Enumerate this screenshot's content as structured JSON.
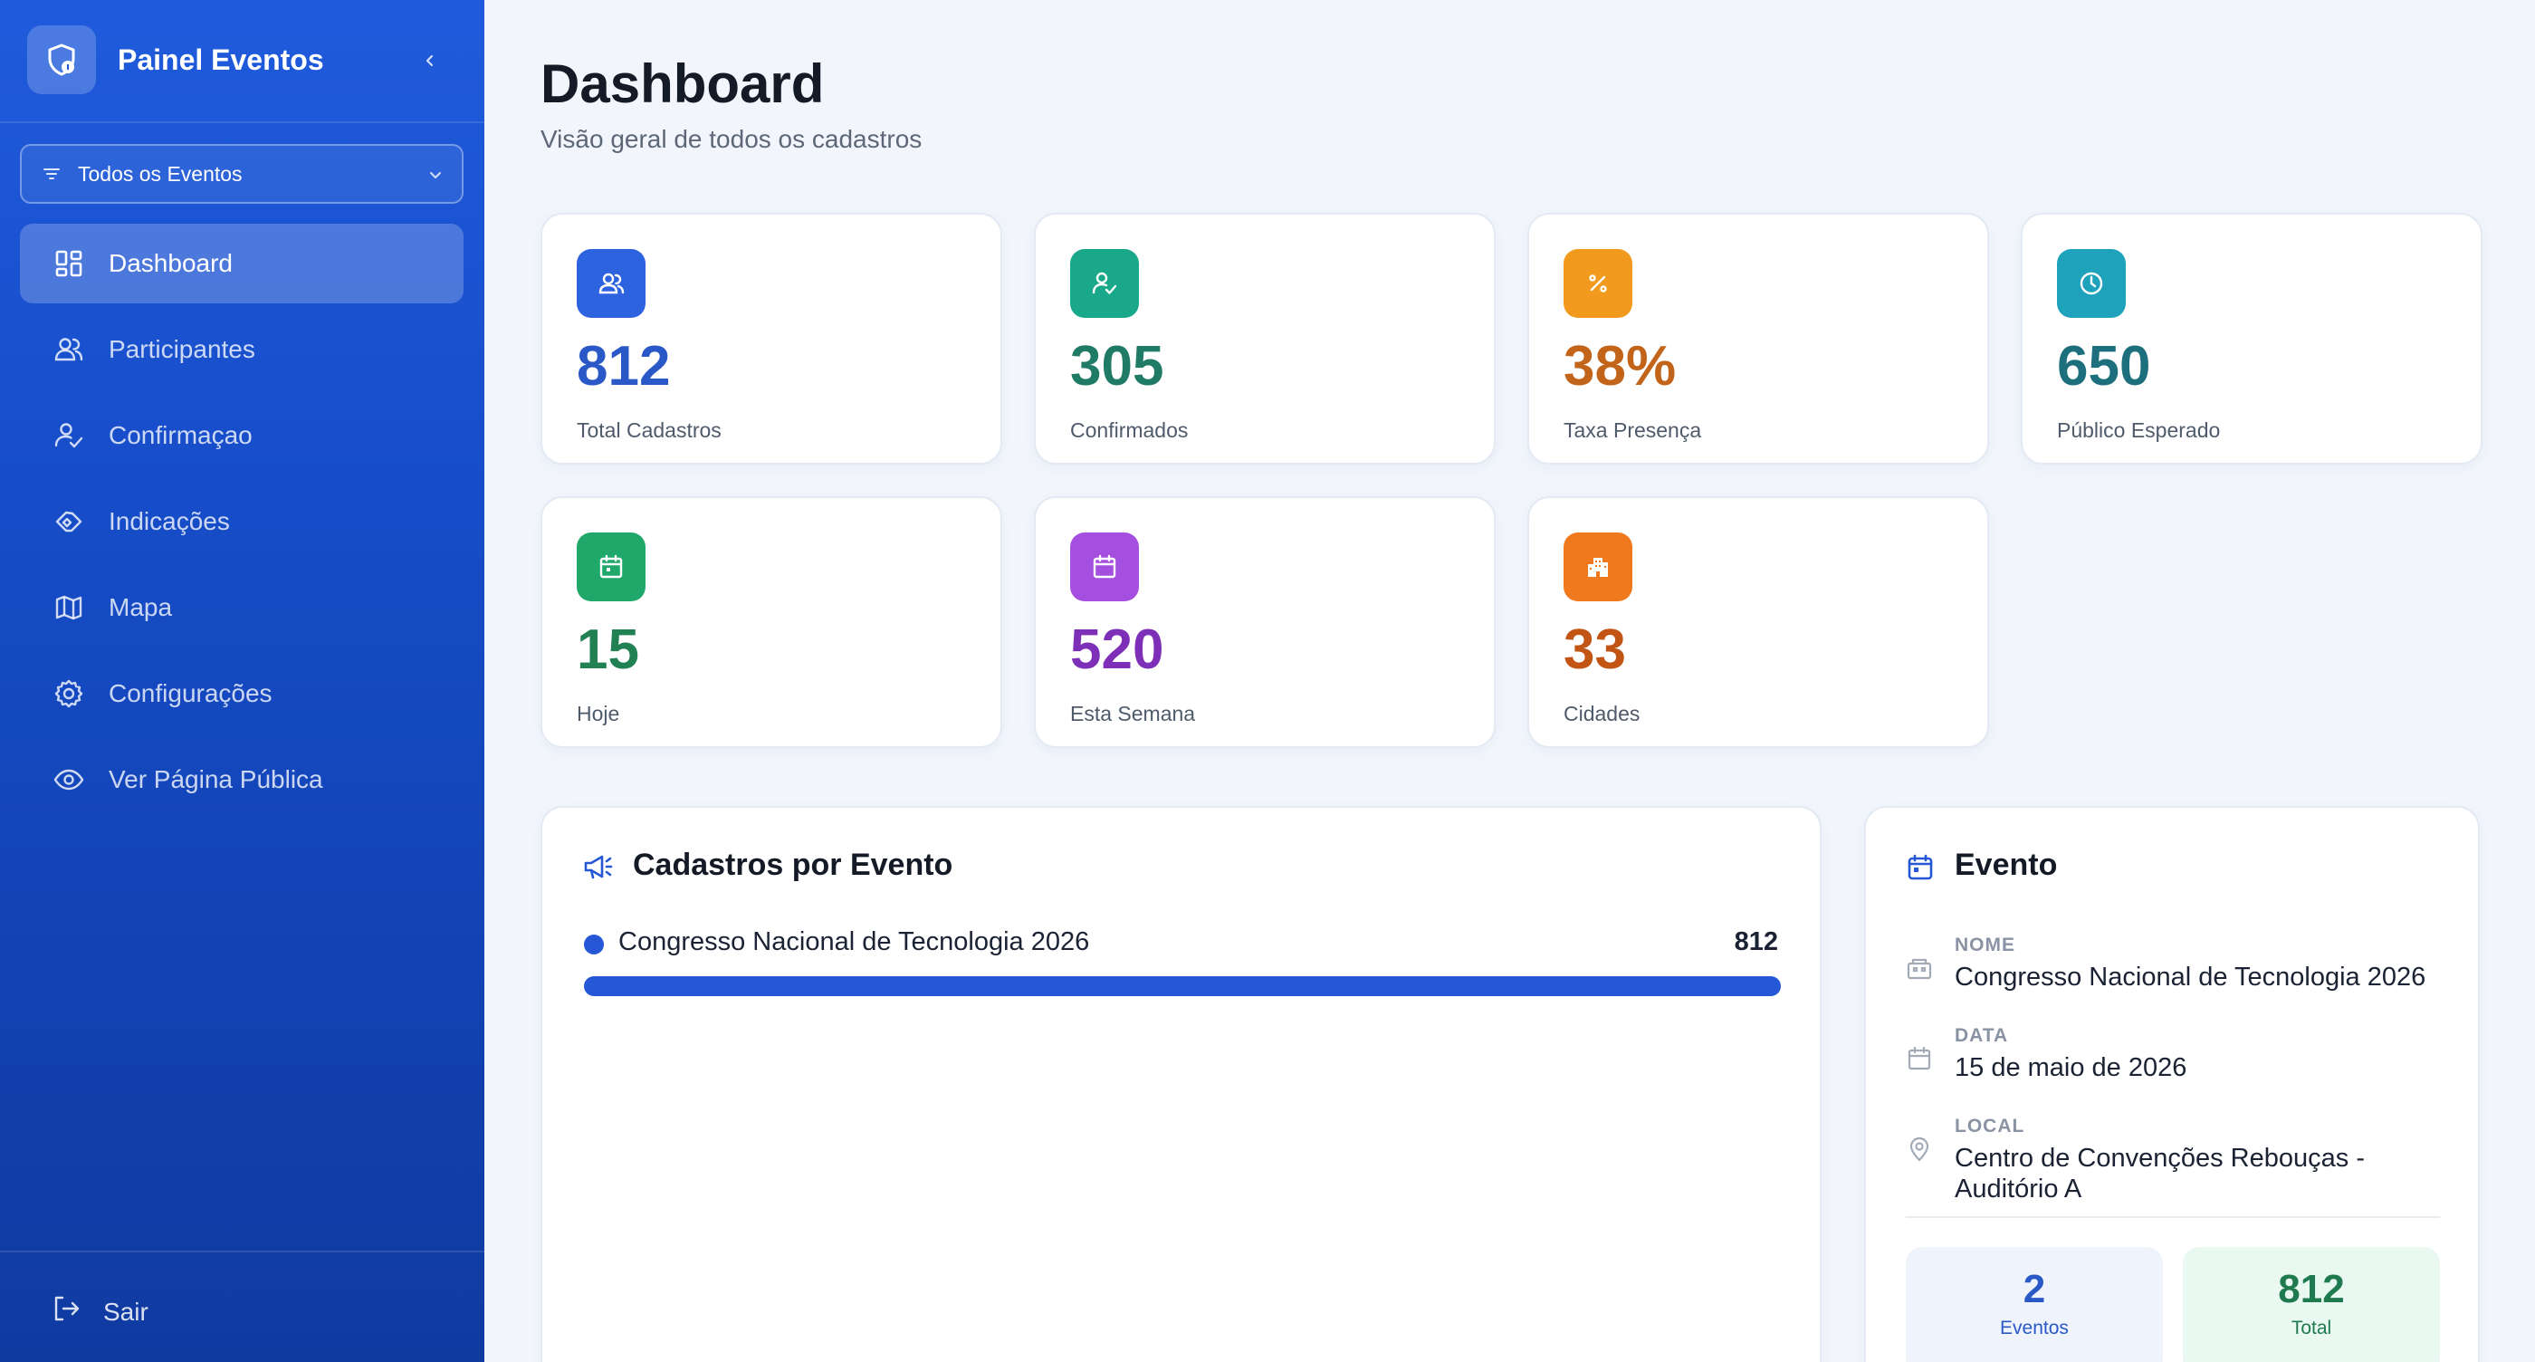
{
  "app": {
    "title": "Painel Eventos"
  },
  "filter": {
    "label": "Todos os Eventos"
  },
  "nav": [
    {
      "label": "Dashboard",
      "icon": "dashboard-icon",
      "active": true
    },
    {
      "label": "Participantes",
      "icon": "users-icon"
    },
    {
      "label": "Confirmaçao",
      "icon": "user-check-icon"
    },
    {
      "label": "Indicações",
      "icon": "handshake-icon"
    },
    {
      "label": "Mapa",
      "icon": "map-icon"
    },
    {
      "label": "Configurações",
      "icon": "gear-icon"
    },
    {
      "label": "Ver Página Pública",
      "icon": "eye-icon"
    }
  ],
  "logout": {
    "label": "Sair"
  },
  "page": {
    "title": "Dashboard",
    "subtitle": "Visão geral de todos os cadastros"
  },
  "stats": [
    {
      "value": "812",
      "label": "Total Cadastros",
      "color": "#2a59c7",
      "icon_bg": "#2e63e0",
      "icon": "users-icon"
    },
    {
      "value": "305",
      "label": "Confirmados",
      "color": "#1f7a66",
      "icon_bg": "#1aa88a",
      "icon": "user-check-icon"
    },
    {
      "value": "38%",
      "label": "Taxa Presença",
      "color": "#c2641a",
      "icon_bg": "#f29a1d",
      "icon": "percent-icon"
    },
    {
      "value": "650",
      "label": "Público Esperado",
      "color": "#1e6f7d",
      "icon_bg": "#1fa3bd",
      "icon": "clock-icon"
    },
    {
      "value": "15",
      "label": "Hoje",
      "color": "#218153",
      "icon_bg": "#1fa86a",
      "icon": "calendar-icon"
    },
    {
      "value": "520",
      "label": "Esta Semana",
      "color": "#7d2fb8",
      "icon_bg": "#a44fdf",
      "icon": "calendar-icon"
    },
    {
      "value": "33",
      "label": "Cidades",
      "color": "#c25414",
      "icon_bg": "#f0781d",
      "icon": "building-icon"
    }
  ],
  "events_panel": {
    "title": "Cadastros por Evento",
    "rows": [
      {
        "name": "Congresso Nacional de Tecnologia 2026",
        "value": "812",
        "fraction": 1.0
      }
    ]
  },
  "event_panel": {
    "title": "Evento",
    "fields": [
      {
        "key": "NOME",
        "value": "Congresso Nacional de Tecnologia 2026",
        "icon": "building-icon"
      },
      {
        "key": "DATA",
        "value": "15 de maio de 2026",
        "icon": "calendar-icon"
      },
      {
        "key": "LOCAL",
        "value": "Centro de Convenções Rebouças - Auditório A",
        "icon": "map-pin-icon"
      }
    ],
    "summary": [
      {
        "value": "2",
        "label": "Eventos"
      },
      {
        "value": "812",
        "label": "Total"
      }
    ]
  }
}
